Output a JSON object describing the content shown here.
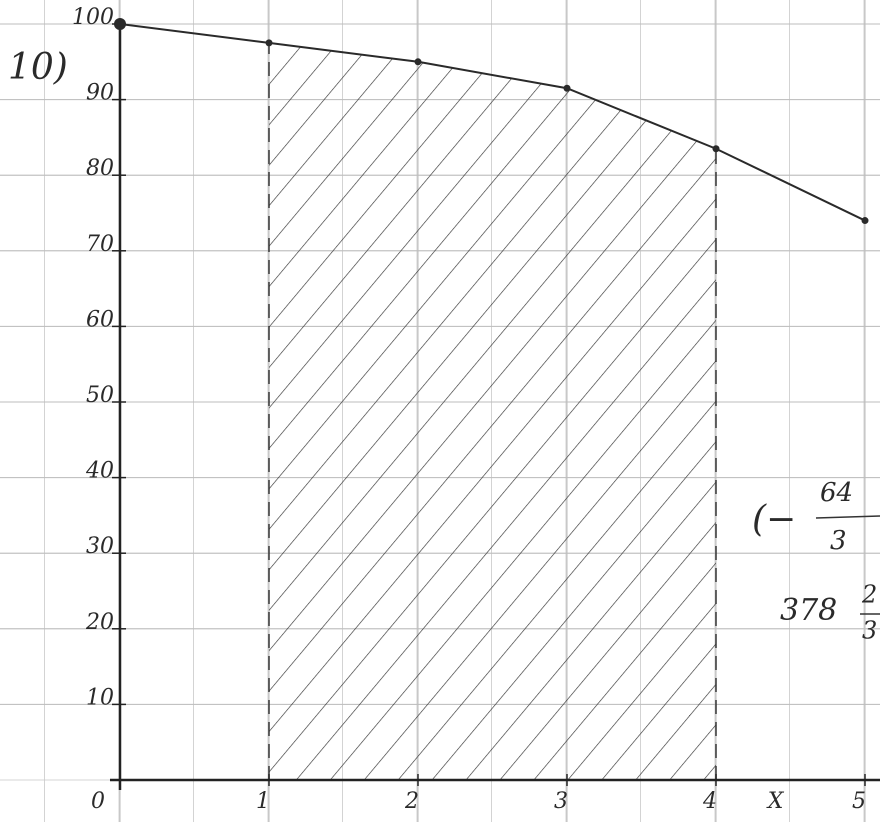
{
  "problem_label": "10)",
  "chart_data": {
    "type": "line",
    "x": [
      0,
      1,
      2,
      3,
      4,
      5
    ],
    "values": [
      100,
      97.5,
      95,
      91.5,
      83.5,
      74
    ],
    "color": "#2a2a2a",
    "xlim": [
      0,
      5
    ],
    "ylim": [
      0,
      100
    ],
    "xticks": [
      0,
      1,
      2,
      3,
      4,
      5
    ],
    "yticks": [
      10,
      20,
      30,
      40,
      50,
      60,
      70,
      80,
      90,
      100
    ],
    "x_label": "X",
    "shade_range": [
      1,
      4
    ],
    "grid": true
  },
  "annotations": [
    {
      "prefix": "(−",
      "numerator": "64",
      "denominator": "3"
    },
    {
      "whole": "378",
      "numerator": "2",
      "denominator": "3"
    }
  ]
}
